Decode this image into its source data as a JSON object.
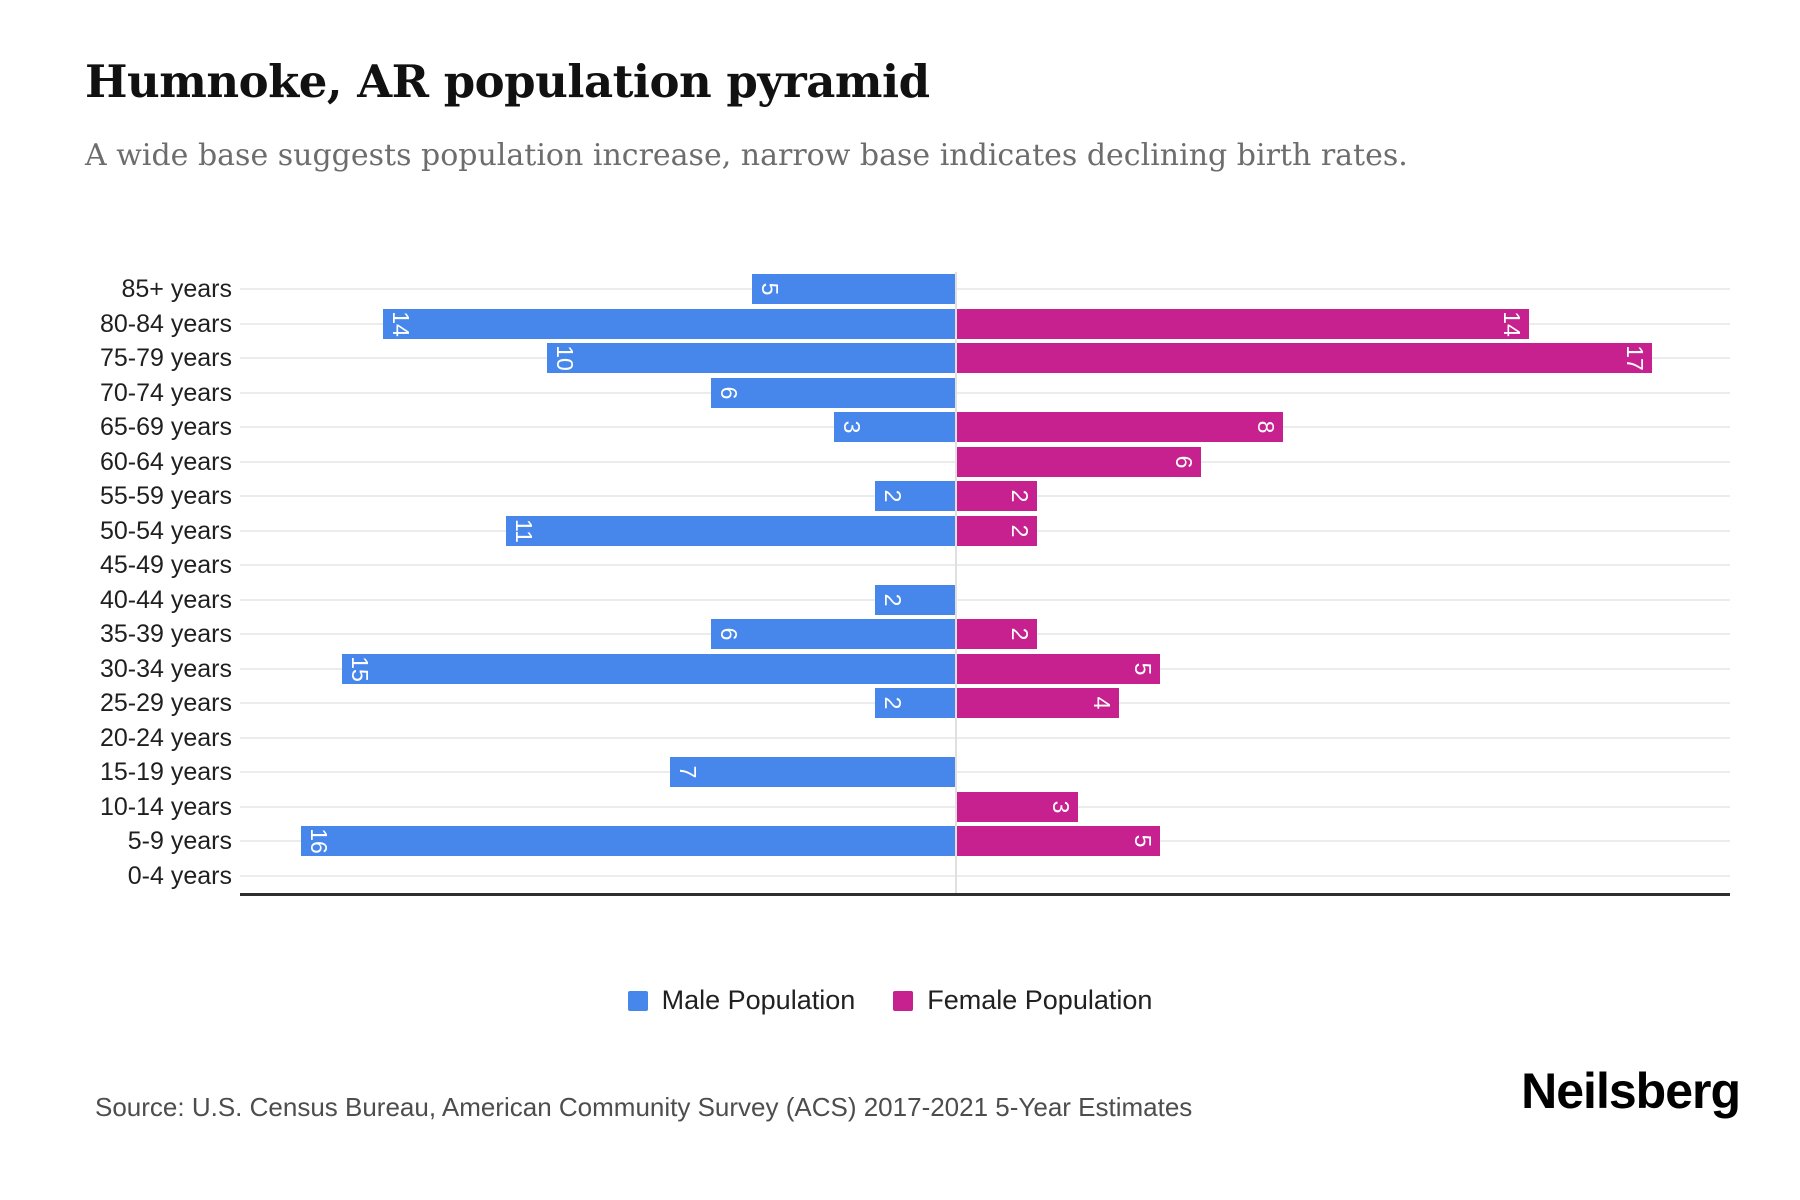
{
  "header": {
    "title": "Humnoke, AR population pyramid",
    "subtitle": "A wide base suggests population increase, narrow base indicates declining birth rates."
  },
  "legend": {
    "male_label": "Male Population",
    "female_label": "Female Population"
  },
  "footer": {
    "source": "Source: U.S. Census Bureau, American Community Survey (ACS) 2017-2021 5-Year Estimates",
    "brand": "Neilsberg"
  },
  "colors": {
    "male": "#4787EC",
    "female": "#C6218E",
    "gridline": "#ececec",
    "zero_line": "#e0e0e0",
    "axis": "#2e2e2e"
  },
  "chart_data": {
    "type": "bar",
    "subtype": "population-pyramid",
    "orientation": "horizontal",
    "title": "Humnoke, AR population pyramid",
    "categories": [
      "85+ years",
      "80-84 years",
      "75-79 years",
      "70-74 years",
      "65-69 years",
      "60-64 years",
      "55-59 years",
      "50-54 years",
      "45-49 years",
      "40-44 years",
      "35-39 years",
      "30-34 years",
      "25-29 years",
      "20-24 years",
      "15-19 years",
      "10-14 years",
      "5-9 years",
      "0-4 years"
    ],
    "series": [
      {
        "name": "Male Population",
        "side": "left",
        "color": "#4787EC",
        "values": [
          5,
          14,
          10,
          6,
          3,
          0,
          2,
          11,
          0,
          2,
          6,
          15,
          2,
          0,
          7,
          0,
          16,
          0
        ]
      },
      {
        "name": "Female Population",
        "side": "right",
        "color": "#C6218E",
        "values": [
          0,
          14,
          17,
          0,
          8,
          6,
          2,
          2,
          0,
          0,
          2,
          5,
          4,
          0,
          0,
          3,
          5,
          0
        ]
      }
    ],
    "value_labels_shown": true,
    "xmax_per_side": 17,
    "grid": true,
    "legend_position": "bottom"
  }
}
